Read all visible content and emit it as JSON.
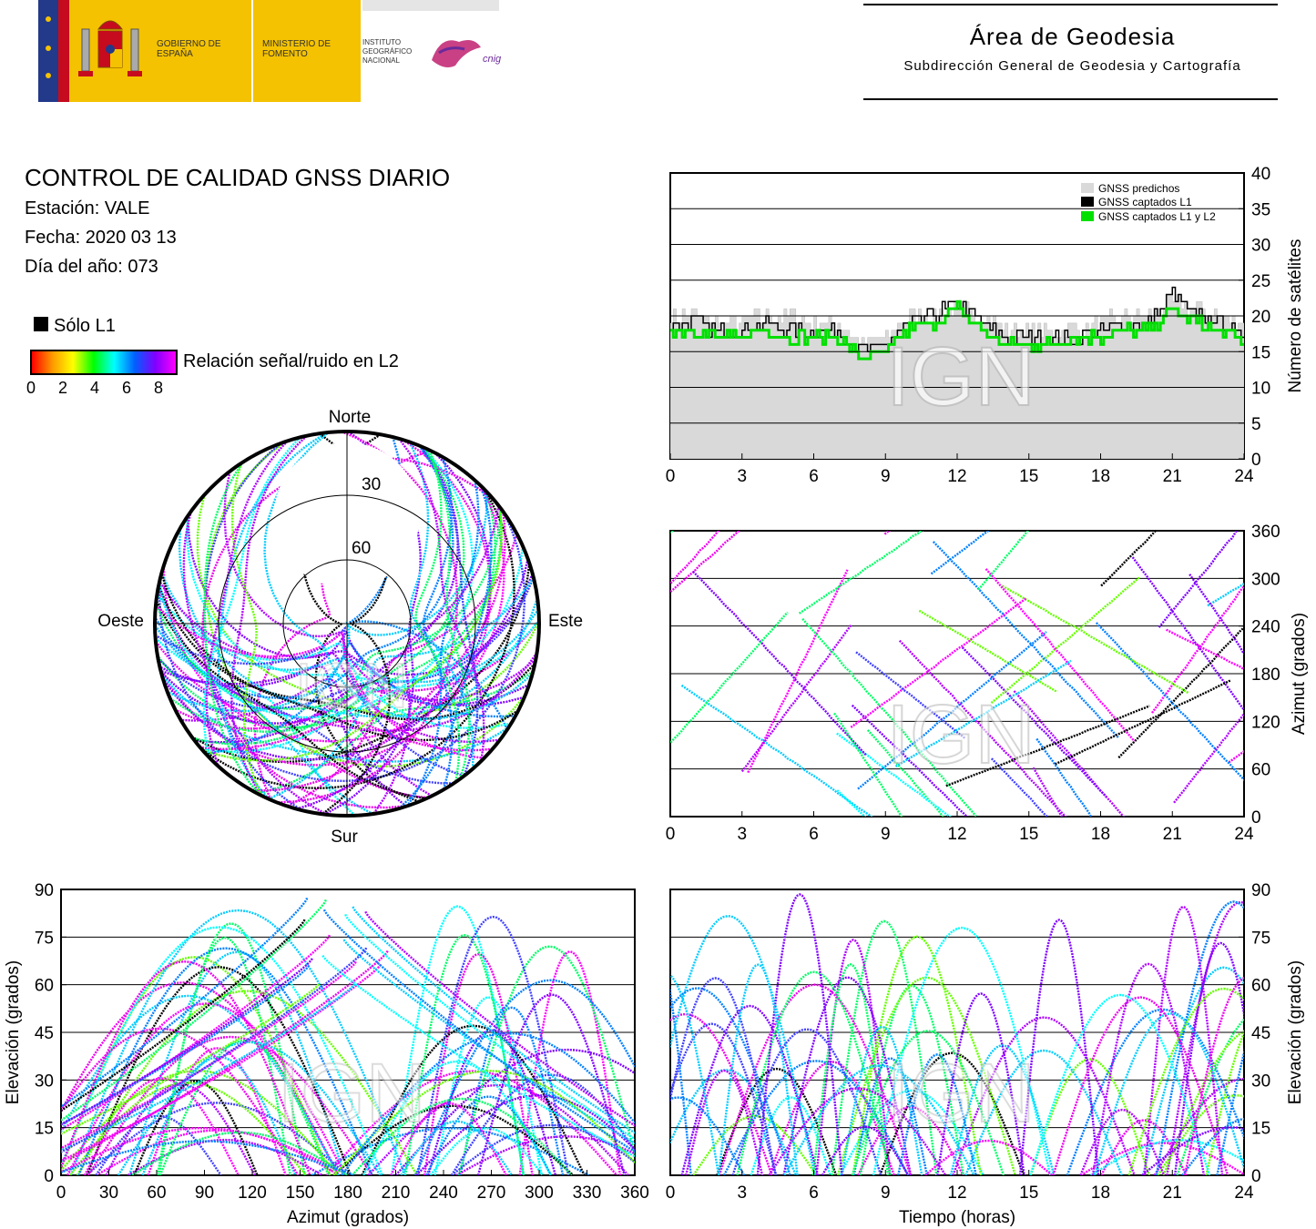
{
  "header": {
    "gobierno": "GOBIERNO DE ESPAÑA",
    "ministerio": "MINISTERIO DE FOMENTO",
    "instituto": "INSTITUTO GEOGRÁFICO NACIONAL",
    "cnig": "cnig",
    "area_title": "Área de Geodesia",
    "area_subtitle": "Subdirección General de Geodesia y Cartografía"
  },
  "report": {
    "title": "CONTROL DE CALIDAD GNSS DIARIO",
    "station": "Estación: VALE",
    "date": "Fecha: 2020 03 13",
    "doy": "Día del año: 073"
  },
  "legend": {
    "only_l1": "Sólo L1",
    "snr_label": "Relación señal/ruido en L2",
    "snr_ticks": [
      "0",
      "2",
      "4",
      "6",
      "8"
    ]
  },
  "watermark": "IGN",
  "colors": {
    "only_l1": "#000000",
    "predicted": "#d9d9d9",
    "l1l2": "#00e000",
    "snr_gradient": [
      "#ff0000",
      "#ff9900",
      "#ffff00",
      "#00ff00",
      "#00ffff",
      "#0000ff",
      "#ff00ff"
    ]
  },
  "chart_data": [
    {
      "id": "skyplot",
      "type": "scatter",
      "projection": "polar",
      "directions": {
        "north": "Norte",
        "south": "Sur",
        "west": "Oeste",
        "east": "Este"
      },
      "elevation_rings": [
        30,
        60
      ],
      "ring_labels": [
        "30",
        "60"
      ],
      "north_gap_elevation_limit": 50
    },
    {
      "id": "satellite_count",
      "type": "area",
      "ylabel": "Número de satélites",
      "xlim": [
        0,
        24
      ],
      "ylim": [
        0,
        40
      ],
      "xticks": [
        "0",
        "3",
        "6",
        "9",
        "12",
        "15",
        "18",
        "21",
        "24"
      ],
      "yticks": [
        "0",
        "5",
        "10",
        "15",
        "20",
        "25",
        "30",
        "35",
        "40"
      ],
      "grid": true,
      "legend_position": "top-right",
      "series": [
        {
          "name": "GNSS predichos",
          "x": [
            0,
            1,
            2,
            3,
            4,
            5,
            6,
            7,
            8,
            9,
            10,
            11,
            12,
            13,
            14,
            15,
            16,
            17,
            18,
            19,
            20,
            21,
            22,
            23,
            24
          ],
          "values": [
            20,
            20,
            19,
            19,
            20,
            20,
            19,
            19,
            16,
            17,
            20,
            20,
            21,
            20,
            18,
            18,
            18,
            18,
            19,
            20,
            20,
            22,
            21,
            20,
            19
          ]
        },
        {
          "name": "GNSS captados L1",
          "x": [
            0,
            1,
            2,
            3,
            4,
            5,
            6,
            7,
            8,
            9,
            10,
            11,
            12,
            13,
            14,
            15,
            16,
            17,
            18,
            19,
            20,
            21,
            22,
            23,
            24
          ],
          "values": [
            19,
            19,
            18,
            18,
            19,
            18,
            18,
            18,
            15,
            16,
            19,
            20,
            22,
            19,
            17,
            17,
            17,
            17,
            18,
            19,
            19,
            23,
            20,
            19,
            17
          ]
        },
        {
          "name": "GNSS captados L1 y L2",
          "x": [
            0,
            1,
            2,
            3,
            4,
            5,
            6,
            7,
            8,
            9,
            10,
            11,
            12,
            13,
            14,
            15,
            16,
            17,
            18,
            19,
            20,
            21,
            22,
            23,
            24
          ],
          "values": [
            18,
            18,
            17,
            17,
            18,
            17,
            17,
            17,
            14,
            15,
            18,
            19,
            21,
            18,
            16,
            16,
            16,
            17,
            17,
            18,
            18,
            21,
            19,
            18,
            16
          ]
        }
      ]
    },
    {
      "id": "azimuth_time",
      "type": "scatter",
      "ylabel": "Azimut (grados)",
      "xlim": [
        0,
        24
      ],
      "ylim": [
        0,
        360
      ],
      "xticks": [
        "0",
        "3",
        "6",
        "9",
        "12",
        "15",
        "18",
        "21",
        "24"
      ],
      "yticks": [
        "0",
        "60",
        "120",
        "180",
        "240",
        "300",
        "360"
      ],
      "grid": true
    },
    {
      "id": "elevation_azimuth",
      "type": "scatter",
      "xlabel": "Azimut (grados)",
      "ylabel": "Elevación (grados)",
      "xlim": [
        0,
        360
      ],
      "ylim": [
        0,
        90
      ],
      "xticks": [
        "0",
        "30",
        "60",
        "90",
        "120",
        "150",
        "180",
        "210",
        "240",
        "270",
        "300",
        "330",
        "360"
      ],
      "yticks": [
        "0",
        "15",
        "30",
        "45",
        "60",
        "75",
        "90"
      ],
      "grid": true
    },
    {
      "id": "elevation_time",
      "type": "scatter",
      "xlabel": "Tiempo (horas)",
      "ylabel": "Elevación (grados)",
      "xlim": [
        0,
        24
      ],
      "ylim": [
        0,
        90
      ],
      "xticks": [
        "0",
        "3",
        "6",
        "9",
        "12",
        "15",
        "18",
        "21",
        "24"
      ],
      "yticks": [
        "0",
        "15",
        "30",
        "45",
        "60",
        "75",
        "90"
      ],
      "grid": true
    }
  ]
}
